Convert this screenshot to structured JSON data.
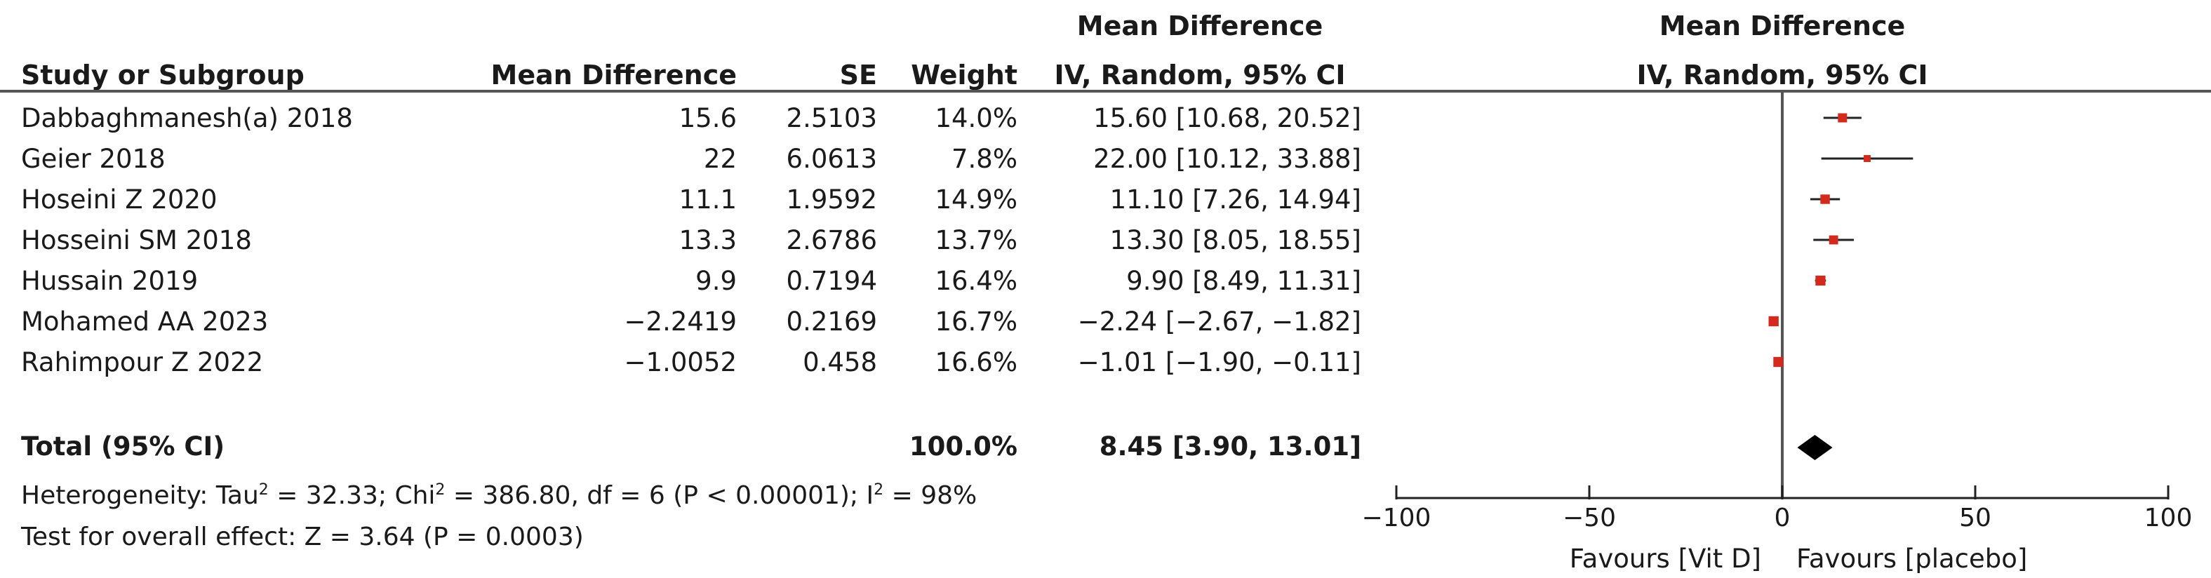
{
  "header": {
    "study": "Study or Subgroup",
    "md": "Mean Difference",
    "se": "SE",
    "weight": "Weight",
    "ci_title": "Mean Difference",
    "ci_method": "IV, Random, 95% CI",
    "plot_title": "Mean Difference",
    "plot_method": "IV, Random, 95% CI"
  },
  "studies": [
    {
      "name": "Dabbaghmanesh(a) 2018",
      "md": "15.6",
      "se": "2.5103",
      "weight": "14.0%",
      "ci": "15.60 [10.68, 20.52]"
    },
    {
      "name": "Geier 2018",
      "md": "22",
      "se": "6.0613",
      "weight": "7.8%",
      "ci": "22.00 [10.12, 33.88]"
    },
    {
      "name": "Hoseini Z 2020",
      "md": "11.1",
      "se": "1.9592",
      "weight": "14.9%",
      "ci": "11.10 [7.26, 14.94]"
    },
    {
      "name": "Hosseini SM 2018",
      "md": "13.3",
      "se": "2.6786",
      "weight": "13.7%",
      "ci": "13.30 [8.05, 18.55]"
    },
    {
      "name": "Hussain 2019",
      "md": "9.9",
      "se": "0.7194",
      "weight": "16.4%",
      "ci": "9.90 [8.49, 11.31]"
    },
    {
      "name": "Mohamed AA 2023",
      "md": "−2.2419",
      "se": "0.2169",
      "weight": "16.7%",
      "ci": "−2.24 [−2.67, −1.82]"
    },
    {
      "name": "Rahimpour Z 2022",
      "md": "−1.0052",
      "se": "0.458",
      "weight": "16.6%",
      "ci": "−1.01 [−1.90, −0.11]"
    }
  ],
  "total": {
    "label": "Total (95% CI)",
    "weight": "100.0%",
    "ci": "8.45 [3.90, 13.01]"
  },
  "stats": {
    "heterogeneity_prefix": "Heterogeneity: Tau",
    "tau2": "= 32.33; Chi",
    "chi2": "= 386.80, df = 6 (P < 0.00001); I",
    "i2": "= 98%",
    "sup": "2",
    "overall": "Test for overall effect: Z = 3.64 (P = 0.0003)"
  },
  "favours": {
    "left": "Favours [Vit D]",
    "right": "Favours [placebo]"
  },
  "colors": {
    "marker": "#d42a1e",
    "line": "#222222",
    "diamond": "#000000"
  },
  "chart_data": {
    "type": "forest",
    "xlim": [
      -100,
      100
    ],
    "xticks": [
      -100,
      -50,
      0,
      50,
      100
    ],
    "xtick_labels": [
      "−100",
      "−50",
      "0",
      "50",
      "100"
    ],
    "points": [
      {
        "study": "Dabbaghmanesh(a) 2018",
        "est": 15.6,
        "lo": 10.68,
        "hi": 20.52,
        "weight": 14.0
      },
      {
        "study": "Geier 2018",
        "est": 22.0,
        "lo": 10.12,
        "hi": 33.88,
        "weight": 7.8
      },
      {
        "study": "Hoseini Z 2020",
        "est": 11.1,
        "lo": 7.26,
        "hi": 14.94,
        "weight": 14.9
      },
      {
        "study": "Hosseini SM 2018",
        "est": 13.3,
        "lo": 8.05,
        "hi": 18.55,
        "weight": 13.7
      },
      {
        "study": "Hussain 2019",
        "est": 9.9,
        "lo": 8.49,
        "hi": 11.31,
        "weight": 16.4
      },
      {
        "study": "Mohamed AA 2023",
        "est": -2.24,
        "lo": -2.67,
        "hi": -1.82,
        "weight": 16.7
      },
      {
        "study": "Rahimpour Z 2022",
        "est": -1.01,
        "lo": -1.9,
        "hi": -0.11,
        "weight": 16.6
      }
    ],
    "pooled": {
      "est": 8.45,
      "lo": 3.9,
      "hi": 13.01
    }
  }
}
